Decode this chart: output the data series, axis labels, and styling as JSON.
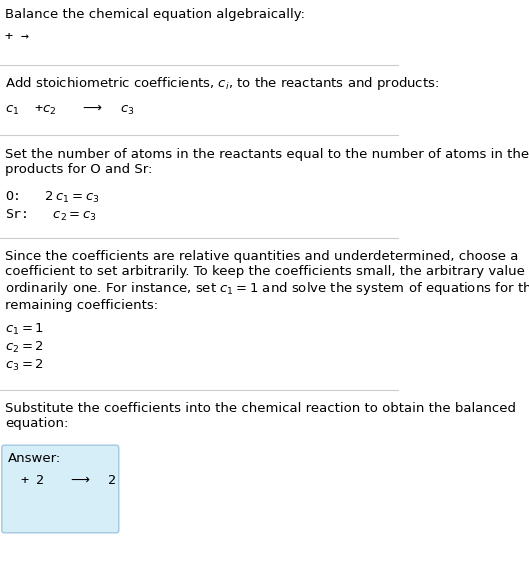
{
  "title_line": "Balance the chemical equation algebraically:",
  "section1_header": "+ →",
  "section2_header": "Add stoichiometric coefficients, $c_i$, to the reactants and products:",
  "section2_eq": "$c_1$  +$c_2$   →  $c_3$",
  "section3_header": "Set the number of atoms in the reactants equal to the number of atoms in the\nproducts for O and Sr:",
  "section3_eq1": "O:   $2\\,c_1 = c_3$",
  "section3_eq2": "Sr:   $c_2 = c_3$",
  "section4_header": "Since the coefficients are relative quantities and underdetermined, choose a\ncoefficient to set arbitrarily. To keep the coefficients small, the arbitrary value is\nordinarily one. For instance, set $c_1 = 1$ and solve the system of equations for the\nremaining coefficients:",
  "section4_eq1": "$c_1 = 1$",
  "section4_eq2": "$c_2 = 2$",
  "section4_eq3": "$c_3 = 2$",
  "section5_header": "Substitute the coefficients into the chemical reaction to obtain the balanced\nequation:",
  "answer_label": "Answer:",
  "answer_eq": "+ 2   →  2",
  "bg_color": "#ffffff",
  "box_color": "#d6eef8",
  "box_border_color": "#a0c8e0",
  "text_color": "#000000",
  "line_color": "#cccccc",
  "font_size": 9.5,
  "mono_font_size": 9.0
}
